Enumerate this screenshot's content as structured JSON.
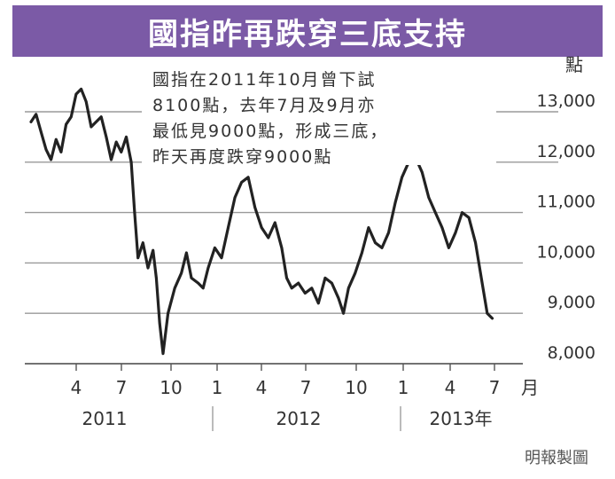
{
  "title": "國指昨再跌穿三底支持",
  "annotation": {
    "lines": [
      "國指在2011年10月曾下試",
      "8100點，去年7月及9月亦",
      "最低見9000點，形成三底，",
      "昨天再度跌穿9000點"
    ]
  },
  "credit": "明報製圖",
  "chart_data": {
    "type": "line",
    "y_unit": "點",
    "ylim": [
      8000,
      13000
    ],
    "yticks": [
      {
        "value": 13000,
        "label": "13,000"
      },
      {
        "value": 12000,
        "label": "12,000"
      },
      {
        "value": 11000,
        "label": "11,000"
      },
      {
        "value": 10000,
        "label": "10,000"
      },
      {
        "value": 9000,
        "label": "9,000"
      },
      {
        "value": 8000,
        "label": "8,000"
      }
    ],
    "x_unit": "月",
    "xticks": [
      "4",
      "7",
      "10",
      "1",
      "4",
      "7",
      "10",
      "1",
      "4",
      "7"
    ],
    "years": [
      "2011",
      "2012",
      "2013年"
    ],
    "grid": true,
    "series": [
      {
        "values": [
          [
            2011.0,
            12800
          ],
          [
            2011.03,
            12950
          ],
          [
            2011.06,
            12600
          ],
          [
            2011.09,
            12250
          ],
          [
            2011.12,
            12050
          ],
          [
            2011.15,
            12450
          ],
          [
            2011.18,
            12200
          ],
          [
            2011.21,
            12750
          ],
          [
            2011.24,
            12900
          ],
          [
            2011.27,
            13350
          ],
          [
            2011.3,
            13450
          ],
          [
            2011.33,
            13200
          ],
          [
            2011.36,
            12700
          ],
          [
            2011.39,
            12800
          ],
          [
            2011.42,
            12900
          ],
          [
            2011.45,
            12500
          ],
          [
            2011.48,
            12050
          ],
          [
            2011.51,
            12400
          ],
          [
            2011.54,
            12200
          ],
          [
            2011.57,
            12500
          ],
          [
            2011.6,
            12000
          ],
          [
            2011.62,
            11000
          ],
          [
            2011.64,
            10100
          ],
          [
            2011.67,
            10400
          ],
          [
            2011.7,
            9900
          ],
          [
            2011.73,
            10250
          ],
          [
            2011.75,
            9700
          ],
          [
            2011.77,
            8800
          ],
          [
            2011.79,
            8200
          ],
          [
            2011.82,
            9000
          ],
          [
            2011.86,
            9500
          ],
          [
            2011.9,
            9800
          ],
          [
            2011.93,
            10200
          ],
          [
            2011.96,
            9700
          ],
          [
            2012.0,
            9600
          ],
          [
            2012.03,
            9500
          ],
          [
            2012.06,
            9900
          ],
          [
            2012.1,
            10300
          ],
          [
            2012.14,
            10100
          ],
          [
            2012.18,
            10700
          ],
          [
            2012.22,
            11300
          ],
          [
            2012.26,
            11600
          ],
          [
            2012.3,
            11700
          ],
          [
            2012.34,
            11100
          ],
          [
            2012.38,
            10700
          ],
          [
            2012.42,
            10500
          ],
          [
            2012.46,
            10800
          ],
          [
            2012.5,
            10300
          ],
          [
            2012.53,
            9700
          ],
          [
            2012.56,
            9500
          ],
          [
            2012.6,
            9600
          ],
          [
            2012.64,
            9400
          ],
          [
            2012.68,
            9500
          ],
          [
            2012.72,
            9200
          ],
          [
            2012.76,
            9700
          ],
          [
            2012.8,
            9600
          ],
          [
            2012.84,
            9300
          ],
          [
            2012.87,
            9000
          ],
          [
            2012.9,
            9500
          ],
          [
            2012.94,
            9800
          ],
          [
            2012.98,
            10200
          ],
          [
            2013.02,
            10700
          ],
          [
            2013.06,
            10400
          ],
          [
            2013.1,
            10300
          ],
          [
            2013.14,
            10600
          ],
          [
            2013.18,
            11200
          ],
          [
            2013.22,
            11700
          ],
          [
            2013.26,
            12000
          ],
          [
            2013.3,
            12100
          ],
          [
            2013.34,
            11800
          ],
          [
            2013.38,
            11300
          ],
          [
            2013.42,
            11000
          ],
          [
            2013.46,
            10700
          ],
          [
            2013.5,
            10300
          ],
          [
            2013.54,
            10600
          ],
          [
            2013.58,
            11000
          ],
          [
            2013.62,
            10900
          ],
          [
            2013.66,
            10400
          ],
          [
            2013.7,
            9600
          ],
          [
            2013.73,
            9000
          ],
          [
            2013.76,
            8900
          ]
        ]
      }
    ]
  }
}
